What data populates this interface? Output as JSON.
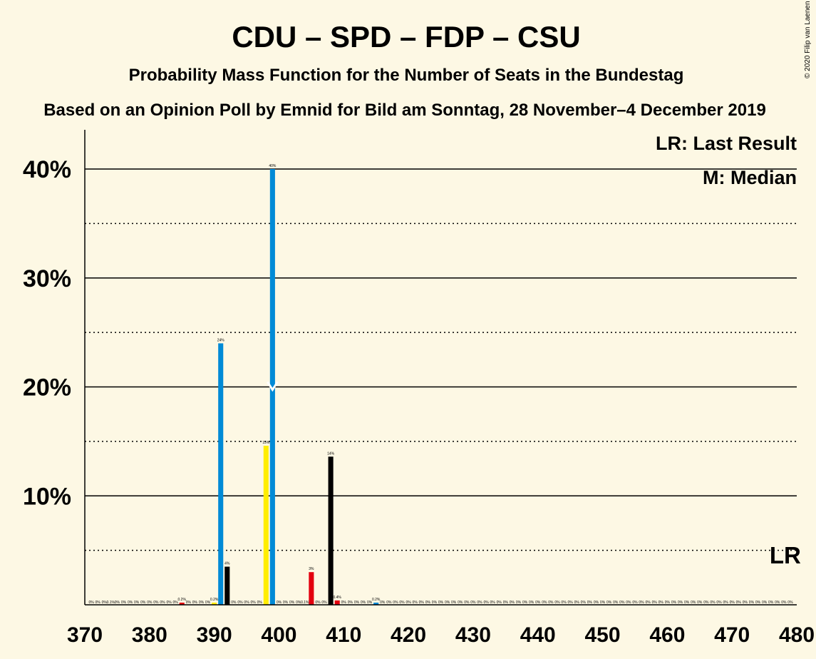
{
  "chart_data": {
    "type": "bar",
    "title": "CDU – SPD – FDP – CSU",
    "subtitle": "Probability Mass Function for the Number of Seats in the Bundestag",
    "subtitle2": "Based on an Opinion Poll by Emnid for Bild am Sonntag, 28 November–4 December 2019",
    "copyright": "© 2020 Filip van Laenen",
    "xlabel": "",
    "ylabel": "",
    "xlim": [
      370,
      480
    ],
    "ylim": [
      0,
      40
    ],
    "x_ticks": [
      "370",
      "380",
      "390",
      "400",
      "410",
      "420",
      "430",
      "440",
      "450",
      "460",
      "470",
      "480"
    ],
    "y_ticks": [
      {
        "value": 10,
        "label": "10%"
      },
      {
        "value": 20,
        "label": "20%"
      },
      {
        "value": 30,
        "label": "30%"
      },
      {
        "value": 40,
        "label": "40%"
      }
    ],
    "grid": {
      "solid": [
        10,
        20,
        30,
        40
      ],
      "dotted": [
        5,
        15,
        25,
        35
      ]
    },
    "legend": {
      "placement": "top-right",
      "entries": [
        "LR: Last Result",
        "M: Median"
      ]
    },
    "last_result": {
      "seats": 478,
      "label": "LR"
    },
    "median": {
      "seats": 399
    },
    "bars": [
      {
        "x": 391,
        "value": 24,
        "color": "#008ad6",
        "label": "24%"
      },
      {
        "x": 392,
        "value": 3.5,
        "color": "#000000",
        "label": "4%"
      },
      {
        "x": 398,
        "value": 14.6,
        "color": "#ffed00",
        "label": "15%"
      },
      {
        "x": 399,
        "value": 40,
        "color": "#008ad6",
        "label": "40%"
      },
      {
        "x": 405,
        "value": 3,
        "color": "#e3000f",
        "label": "3%"
      },
      {
        "x": 408,
        "value": 13.6,
        "color": "#000000",
        "label": "14%"
      },
      {
        "x": 409,
        "value": 0.4,
        "color": "#e3000f",
        "label": "0.4%"
      },
      {
        "x": 385,
        "value": 0.2,
        "color": "#e3000f",
        "label": "0.2%"
      },
      {
        "x": 390,
        "value": 0.2,
        "color": "#ffed00",
        "label": "0.2%"
      },
      {
        "x": 415,
        "value": 0.2,
        "color": "#008ad6",
        "label": "0.2%"
      }
    ],
    "small_labels": [
      {
        "x": 374,
        "label": "0.1%"
      },
      {
        "x": 404,
        "label": "0.1%"
      }
    ],
    "zero_label": "0%",
    "colors": {
      "background": "#fdf8e4",
      "blue": "#008ad6",
      "black": "#000000",
      "yellow": "#ffed00",
      "red": "#e3000f"
    }
  }
}
